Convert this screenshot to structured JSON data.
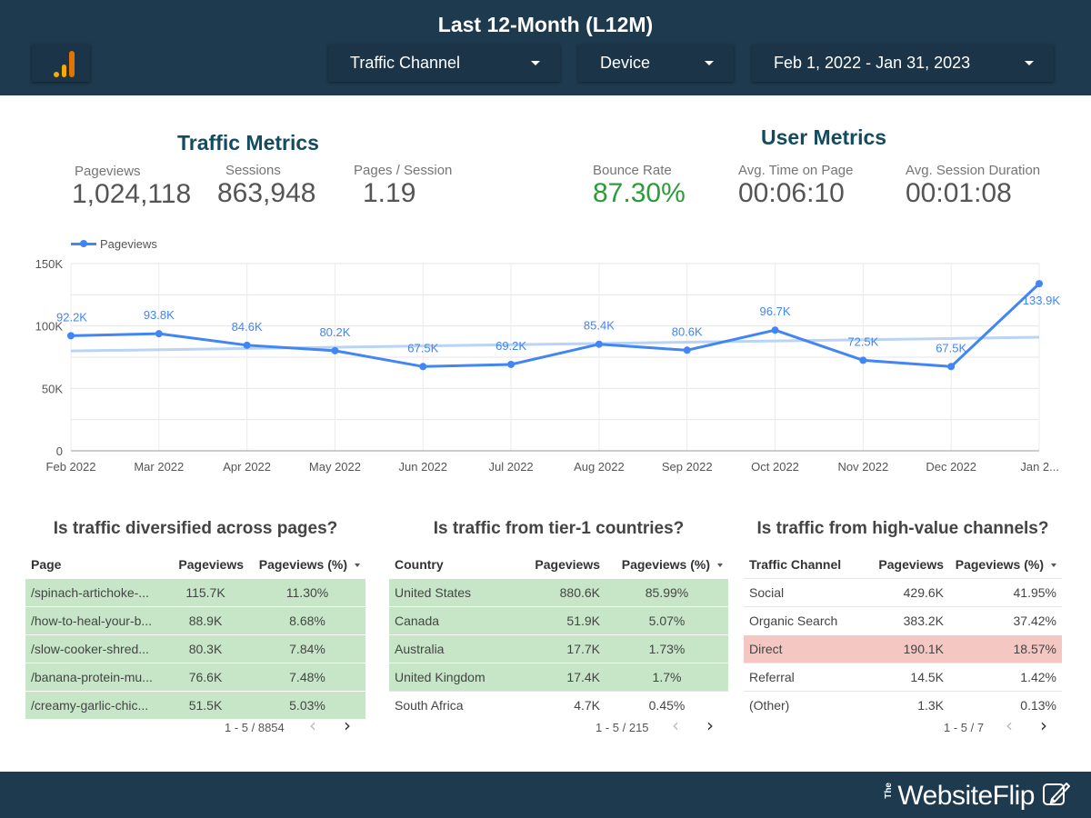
{
  "header": {
    "title": "Last 12-Month (L12M)",
    "filters": [
      {
        "label": "Traffic Channel"
      },
      {
        "label": "Device"
      },
      {
        "label": "Feb 1, 2022 - Jan 31, 2023"
      }
    ]
  },
  "traffic_metrics": {
    "title": "Traffic Metrics",
    "kpis": [
      {
        "label": "Pageviews",
        "value": "1,024,118"
      },
      {
        "label": "Sessions",
        "value": "863,948"
      },
      {
        "label": "Pages / Session",
        "value": "1.19"
      }
    ]
  },
  "user_metrics": {
    "title": "User Metrics",
    "kpis": [
      {
        "label": "Bounce Rate",
        "value": "87.30%"
      },
      {
        "label": "Avg. Time on Page",
        "value": "00:06:10"
      },
      {
        "label": "Avg. Session Duration",
        "value": "00:01:08"
      }
    ]
  },
  "colors": {
    "header_bg": "#1e3a4f",
    "series": "#4285f4",
    "trend": "#b9d4f5",
    "good": "#c7e6c7",
    "bad": "#f4c7c3",
    "bounce_value": "#2e9b3a"
  },
  "chart_data": {
    "type": "line",
    "legend": "Pageviews",
    "legend_position": "top-left",
    "categories": [
      "Feb 2022",
      "Mar 2022",
      "Apr 2022",
      "May 2022",
      "Jun 2022",
      "Jul 2022",
      "Aug 2022",
      "Sep 2022",
      "Oct 2022",
      "Nov 2022",
      "Dec 2022",
      "Jan 2..."
    ],
    "series": [
      {
        "name": "Pageviews",
        "values": [
          92200,
          93800,
          84600,
          80200,
          67500,
          69200,
          85400,
          80600,
          96700,
          72500,
          67500,
          133900
        ],
        "labels": [
          "92.2K",
          "93.8K",
          "84.6K",
          "80.2K",
          "67.5K",
          "69.2K",
          "85.4K",
          "80.6K",
          "96.7K",
          "72.5K",
          "67.5K",
          "133.9K"
        ]
      }
    ],
    "trendline": {
      "start": 80000,
      "end": 91000
    },
    "y_ticks": [
      "0",
      "50K",
      "100K",
      "150K"
    ],
    "y_tick_values": [
      0,
      50000,
      100000,
      150000
    ],
    "ylim": [
      0,
      150000
    ],
    "grid": true
  },
  "tables": [
    {
      "title": "Is traffic diversified across pages?",
      "headers": [
        "Page",
        "Pageviews",
        "Pageviews (%)"
      ],
      "rows": [
        {
          "c": [
            "/spinach-artichoke-...",
            "115.7K",
            "11.30%"
          ],
          "hl": "green"
        },
        {
          "c": [
            "/how-to-heal-your-b...",
            "88.9K",
            "8.68%"
          ],
          "hl": "green"
        },
        {
          "c": [
            "/slow-cooker-shred...",
            "80.3K",
            "7.84%"
          ],
          "hl": "green"
        },
        {
          "c": [
            "/banana-protein-mu...",
            "76.6K",
            "7.48%"
          ],
          "hl": "green"
        },
        {
          "c": [
            "/creamy-garlic-chic...",
            "51.5K",
            "5.03%"
          ],
          "hl": "green"
        }
      ],
      "pager": "1 - 5 / 8854"
    },
    {
      "title": "Is traffic from tier-1 countries?",
      "headers": [
        "Country",
        "Pageviews",
        "Pageviews (%)"
      ],
      "rows": [
        {
          "c": [
            "United States",
            "880.6K",
            "85.99%"
          ],
          "hl": "green"
        },
        {
          "c": [
            "Canada",
            "51.9K",
            "5.07%"
          ],
          "hl": "green"
        },
        {
          "c": [
            "Australia",
            "17.7K",
            "1.73%"
          ],
          "hl": "green"
        },
        {
          "c": [
            "United Kingdom",
            "17.4K",
            "1.7%"
          ],
          "hl": "green"
        },
        {
          "c": [
            "South Africa",
            "4.7K",
            "0.45%"
          ],
          "hl": "plain"
        }
      ],
      "pager": "1 - 5 / 215"
    },
    {
      "title": "Is traffic from high-value channels?",
      "headers": [
        "Traffic Channel",
        "Pageviews",
        "Pageviews (%)"
      ],
      "rows": [
        {
          "c": [
            "Social",
            "429.6K",
            "41.95%"
          ],
          "hl": "plain"
        },
        {
          "c": [
            "Organic Search",
            "383.2K",
            "37.42%"
          ],
          "hl": "plain"
        },
        {
          "c": [
            "Direct",
            "190.1K",
            "18.57%"
          ],
          "hl": "red"
        },
        {
          "c": [
            "Referral",
            "14.5K",
            "1.42%"
          ],
          "hl": "plain"
        },
        {
          "c": [
            "(Other)",
            "1.3K",
            "0.13%"
          ],
          "hl": "plain"
        }
      ],
      "pager": "1 - 5 / 7"
    }
  ],
  "footer": {
    "brand_prefix": "The",
    "brand": "WebsiteFlip"
  }
}
